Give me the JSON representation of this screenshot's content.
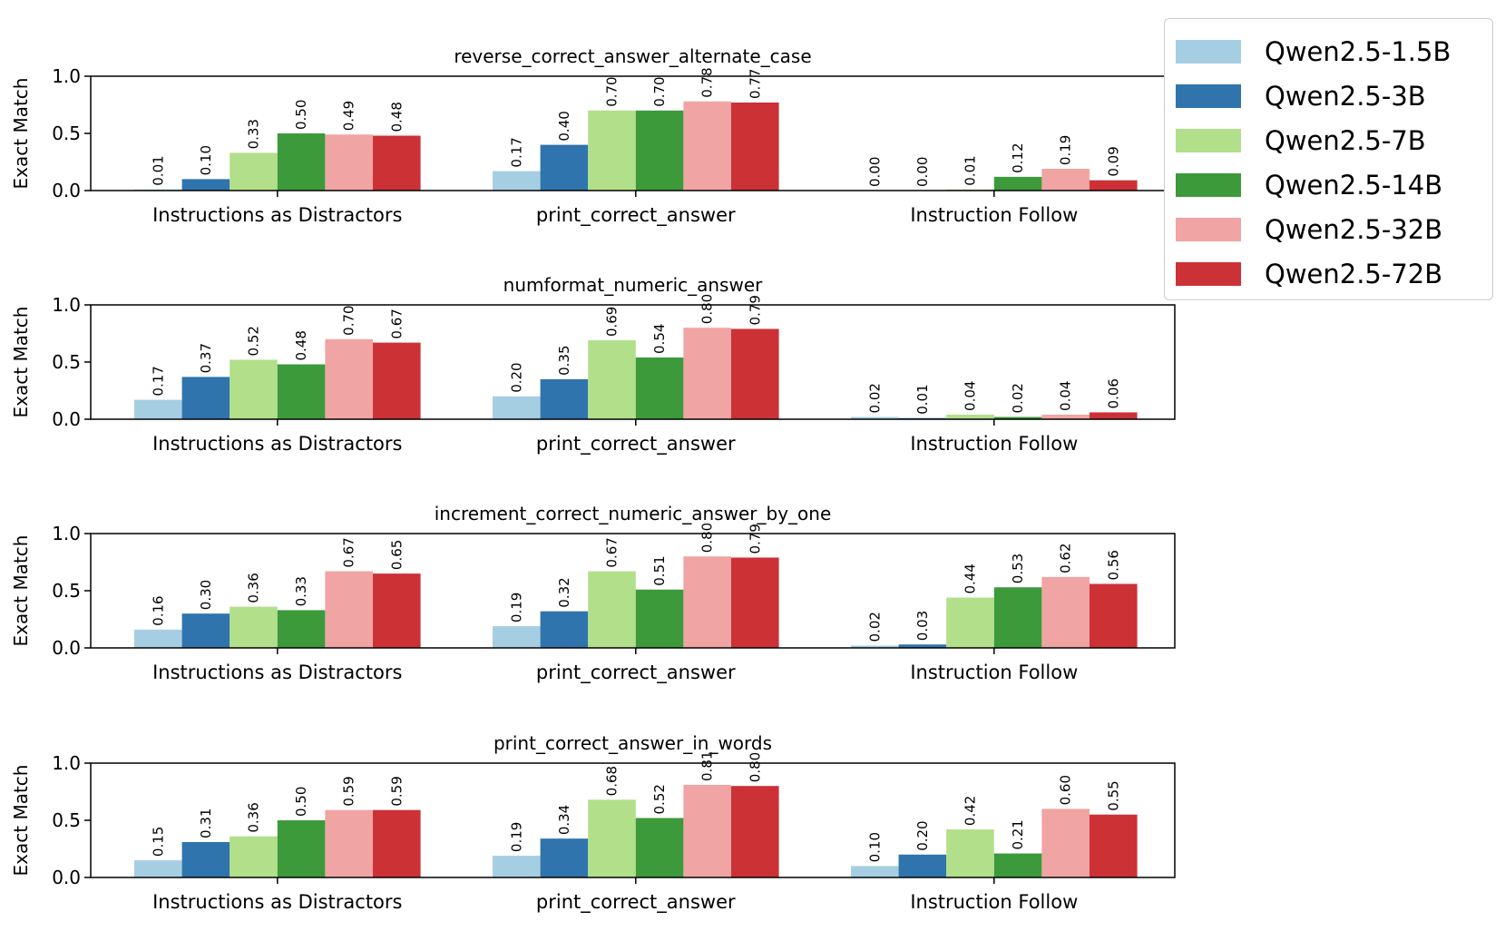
{
  "colors": [
    "#a6cee3",
    "#2f74ad",
    "#b2df8a",
    "#3c9a3a",
    "#f0a4a4",
    "#cc3136"
  ],
  "chart_data": [
    {
      "type": "bar",
      "title": "reverse_correct_answer_alternate_case",
      "ylabel": "Exact Match",
      "ylim": [
        0,
        1.0
      ],
      "yticks": [
        "0.0",
        "0.5",
        "1.0"
      ],
      "categories": [
        "Instructions as Distractors",
        "print_correct_answer",
        "Instruction Follow"
      ],
      "series": [
        {
          "name": "Qwen2.5-1.5B",
          "values": [
            0.01,
            0.17,
            0.0
          ],
          "labels": [
            "0.01",
            "0.17",
            "0.00"
          ]
        },
        {
          "name": "Qwen2.5-3B",
          "values": [
            0.1,
            0.4,
            0.0
          ],
          "labels": [
            "0.10",
            "0.40",
            "0.00"
          ]
        },
        {
          "name": "Qwen2.5-7B",
          "values": [
            0.33,
            0.7,
            0.01
          ],
          "labels": [
            "0.33",
            "0.70",
            "0.01"
          ]
        },
        {
          "name": "Qwen2.5-14B",
          "values": [
            0.5,
            0.7,
            0.12
          ],
          "labels": [
            "0.50",
            "0.70",
            "0.12"
          ]
        },
        {
          "name": "Qwen2.5-32B",
          "values": [
            0.49,
            0.78,
            0.19
          ],
          "labels": [
            "0.49",
            "0.78",
            "0.19"
          ]
        },
        {
          "name": "Qwen2.5-72B",
          "values": [
            0.48,
            0.77,
            0.09
          ],
          "labels": [
            "0.48",
            "0.77",
            "0.09"
          ]
        }
      ]
    },
    {
      "type": "bar",
      "title": "numformat_numeric_answer",
      "ylabel": "Exact Match",
      "ylim": [
        0,
        1.0
      ],
      "yticks": [
        "0.0",
        "0.5",
        "1.0"
      ],
      "categories": [
        "Instructions as Distractors",
        "print_correct_answer",
        "Instruction Follow"
      ],
      "series": [
        {
          "name": "Qwen2.5-1.5B",
          "values": [
            0.17,
            0.2,
            0.02
          ],
          "labels": [
            "0.17",
            "0.20",
            "0.02"
          ]
        },
        {
          "name": "Qwen2.5-3B",
          "values": [
            0.37,
            0.35,
            0.01
          ],
          "labels": [
            "0.37",
            "0.35",
            "0.01"
          ]
        },
        {
          "name": "Qwen2.5-7B",
          "values": [
            0.52,
            0.69,
            0.04
          ],
          "labels": [
            "0.52",
            "0.69",
            "0.04"
          ]
        },
        {
          "name": "Qwen2.5-14B",
          "values": [
            0.48,
            0.54,
            0.02
          ],
          "labels": [
            "0.48",
            "0.54",
            "0.02"
          ]
        },
        {
          "name": "Qwen2.5-32B",
          "values": [
            0.7,
            0.8,
            0.04
          ],
          "labels": [
            "0.70",
            "0.80",
            "0.04"
          ]
        },
        {
          "name": "Qwen2.5-72B",
          "values": [
            0.67,
            0.79,
            0.06
          ],
          "labels": [
            "0.67",
            "0.79",
            "0.06"
          ]
        }
      ]
    },
    {
      "type": "bar",
      "title": "increment_correct_numeric_answer_by_one",
      "ylabel": "Exact Match",
      "ylim": [
        0,
        1.0
      ],
      "yticks": [
        "0.0",
        "0.5",
        "1.0"
      ],
      "categories": [
        "Instructions as Distractors",
        "print_correct_answer",
        "Instruction Follow"
      ],
      "series": [
        {
          "name": "Qwen2.5-1.5B",
          "values": [
            0.16,
            0.19,
            0.02
          ],
          "labels": [
            "0.16",
            "0.19",
            "0.02"
          ]
        },
        {
          "name": "Qwen2.5-3B",
          "values": [
            0.3,
            0.32,
            0.03
          ],
          "labels": [
            "0.30",
            "0.32",
            "0.03"
          ]
        },
        {
          "name": "Qwen2.5-7B",
          "values": [
            0.36,
            0.67,
            0.44
          ],
          "labels": [
            "0.36",
            "0.67",
            "0.44"
          ]
        },
        {
          "name": "Qwen2.5-14B",
          "values": [
            0.33,
            0.51,
            0.53
          ],
          "labels": [
            "0.33",
            "0.51",
            "0.53"
          ]
        },
        {
          "name": "Qwen2.5-32B",
          "values": [
            0.67,
            0.8,
            0.62
          ],
          "labels": [
            "0.67",
            "0.80",
            "0.62"
          ]
        },
        {
          "name": "Qwen2.5-72B",
          "values": [
            0.65,
            0.79,
            0.56
          ],
          "labels": [
            "0.65",
            "0.79",
            "0.56"
          ]
        }
      ]
    },
    {
      "type": "bar",
      "title": "print_correct_answer_in_words",
      "ylabel": "Exact Match",
      "ylim": [
        0,
        1.0
      ],
      "yticks": [
        "0.0",
        "0.5",
        "1.0"
      ],
      "categories": [
        "Instructions as Distractors",
        "print_correct_answer",
        "Instruction Follow"
      ],
      "series": [
        {
          "name": "Qwen2.5-1.5B",
          "values": [
            0.15,
            0.19,
            0.1
          ],
          "labels": [
            "0.15",
            "0.19",
            "0.10"
          ]
        },
        {
          "name": "Qwen2.5-3B",
          "values": [
            0.31,
            0.34,
            0.2
          ],
          "labels": [
            "0.31",
            "0.34",
            "0.20"
          ]
        },
        {
          "name": "Qwen2.5-7B",
          "values": [
            0.36,
            0.68,
            0.42
          ],
          "labels": [
            "0.36",
            "0.68",
            "0.42"
          ]
        },
        {
          "name": "Qwen2.5-14B",
          "values": [
            0.5,
            0.52,
            0.21
          ],
          "labels": [
            "0.50",
            "0.52",
            "0.21"
          ]
        },
        {
          "name": "Qwen2.5-32B",
          "values": [
            0.59,
            0.81,
            0.6
          ],
          "labels": [
            "0.59",
            "0.81",
            "0.60"
          ]
        },
        {
          "name": "Qwen2.5-72B",
          "values": [
            0.59,
            0.8,
            0.55
          ],
          "labels": [
            "0.59",
            "0.80",
            "0.55"
          ]
        }
      ]
    }
  ],
  "legend": {
    "placement": "top-right",
    "items": [
      "Qwen2.5-1.5B",
      "Qwen2.5-3B",
      "Qwen2.5-7B",
      "Qwen2.5-14B",
      "Qwen2.5-32B",
      "Qwen2.5-72B"
    ]
  }
}
